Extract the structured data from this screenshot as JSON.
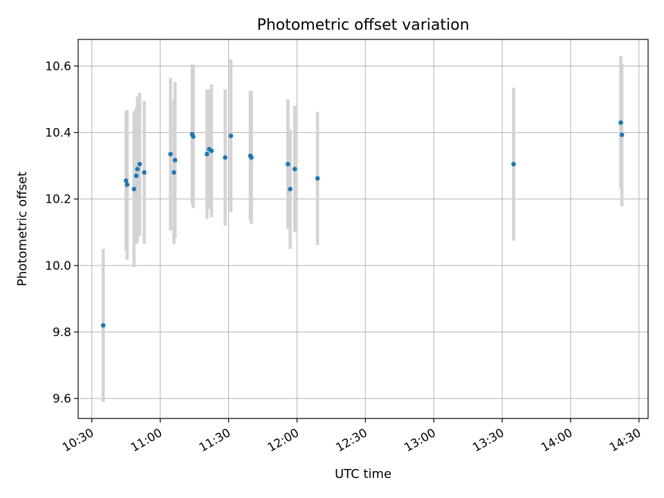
{
  "chart_data": {
    "type": "scatter",
    "title": "Photometric offset variation",
    "xlabel": "UTC time",
    "ylabel": "Photometric offset",
    "grid": true,
    "legend": "none",
    "x_ticks": [
      "10:30",
      "11:00",
      "11:30",
      "12:00",
      "12:30",
      "13:00",
      "13:30",
      "14:00",
      "14:30"
    ],
    "y_ticks": [
      "9.6",
      "9.8",
      "10.0",
      "10.2",
      "10.4",
      "10.6"
    ],
    "xlim": [
      "10:24",
      "14:34"
    ],
    "ylim": [
      9.54,
      10.68
    ],
    "marker_color": "#1f77b4",
    "errorbar_color": "#d3d3d3",
    "points": [
      {
        "time": "10:35",
        "y": 9.82,
        "yerr": 0.23
      },
      {
        "time": "10:45",
        "y": 10.255,
        "yerr": 0.21
      },
      {
        "time": "10:45.5",
        "y": 10.243,
        "yerr": 0.225
      },
      {
        "time": "10:48.5",
        "y": 10.23,
        "yerr": 0.235
      },
      {
        "time": "10:49.5",
        "y": 10.27,
        "yerr": 0.205
      },
      {
        "time": "10:50",
        "y": 10.29,
        "yerr": 0.22
      },
      {
        "time": "10:51",
        "y": 10.305,
        "yerr": 0.215
      },
      {
        "time": "10:53",
        "y": 10.28,
        "yerr": 0.215
      },
      {
        "time": "11:04.5",
        "y": 10.335,
        "yerr": 0.23
      },
      {
        "time": "11:06",
        "y": 10.28,
        "yerr": 0.215
      },
      {
        "time": "11:06.5",
        "y": 10.317,
        "yerr": 0.235
      },
      {
        "time": "11:14",
        "y": 10.395,
        "yerr": 0.21
      },
      {
        "time": "11:14.5",
        "y": 10.388,
        "yerr": 0.215
      },
      {
        "time": "11:20.5",
        "y": 10.335,
        "yerr": 0.195
      },
      {
        "time": "11:21.5",
        "y": 10.35,
        "yerr": 0.18
      },
      {
        "time": "11:22.5",
        "y": 10.345,
        "yerr": 0.2
      },
      {
        "time": "11:28.5",
        "y": 10.325,
        "yerr": 0.205
      },
      {
        "time": "11:31",
        "y": 10.39,
        "yerr": 0.23
      },
      {
        "time": "11:39.5",
        "y": 10.33,
        "yerr": 0.195
      },
      {
        "time": "11:40",
        "y": 10.325,
        "yerr": 0.2
      },
      {
        "time": "11:56",
        "y": 10.305,
        "yerr": 0.195
      },
      {
        "time": "11:57",
        "y": 10.23,
        "yerr": 0.18
      },
      {
        "time": "11:59",
        "y": 10.29,
        "yerr": 0.19
      },
      {
        "time": "12:09",
        "y": 10.262,
        "yerr": 0.2
      },
      {
        "time": "13:35",
        "y": 10.305,
        "yerr": 0.23
      },
      {
        "time": "14:22",
        "y": 10.43,
        "yerr": 0.2
      },
      {
        "time": "14:22.5",
        "y": 10.393,
        "yerr": 0.215
      }
    ]
  }
}
